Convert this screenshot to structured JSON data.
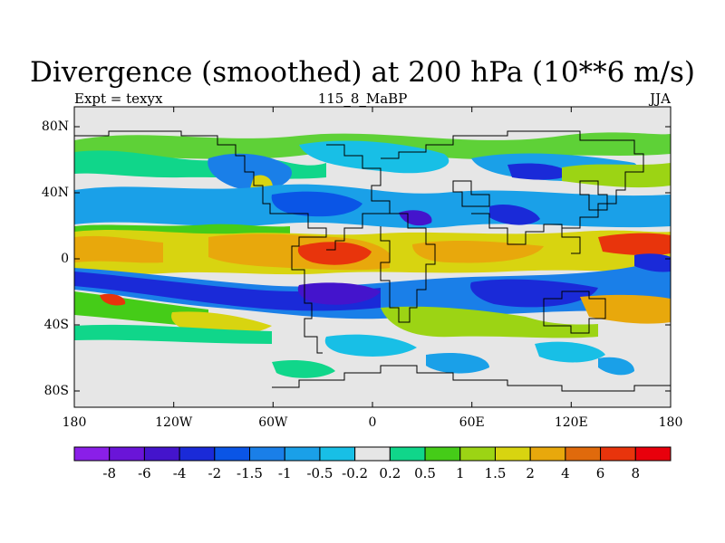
{
  "title": "Divergence (smoothed) at 200 hPa (10**6 m/s)",
  "subtitle": {
    "left": "Expt = texyx",
    "center": "115_8_MaBP",
    "right": "JJA"
  },
  "lat_labels": [
    "80N",
    "40N",
    "0",
    "40S",
    "80S"
  ],
  "lon_labels": [
    "180",
    "120W",
    "60W",
    "0",
    "60E",
    "120E",
    "180"
  ],
  "colorbar": {
    "labels": [
      "-8",
      "-6",
      "-4",
      "-2",
      "-1.5",
      "-1",
      "-0.5",
      "-0.2",
      "0.2",
      "0.5",
      "1",
      "1.5",
      "2",
      "4",
      "6",
      "8"
    ],
    "colors": [
      "#8a1fe8",
      "#6a15d8",
      "#4414cc",
      "#1a2ad8",
      "#0a55e6",
      "#1a7fe8",
      "#1aa0e8",
      "#18bfe6",
      "#e6e6e6",
      "#10d68a",
      "#45cc18",
      "#9cd414",
      "#d8d410",
      "#e8a80c",
      "#e06a0c",
      "#e8340c",
      "#e8000c"
    ]
  }
}
